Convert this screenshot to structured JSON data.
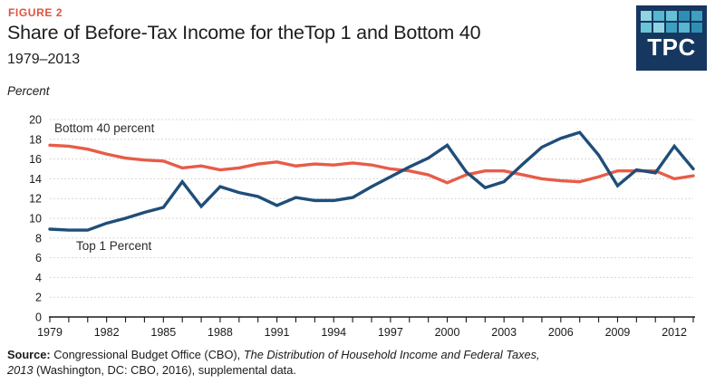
{
  "figure_label": "FIGURE 2",
  "title": "Share of Before-Tax Income for theTop 1 and Bottom 40",
  "subtitle": "1979–2013",
  "axis_unit_label": "Percent",
  "logo": {
    "text": "TPC",
    "background": "#16375f",
    "square_colors": [
      "#8fd4e0",
      "#57b6d0",
      "#66c0d6",
      "#2e8fb5",
      "#3da0c1",
      "#6cc3d6",
      "#8fd4e0",
      "#3da0c1",
      "#57b6d0",
      "#2e8fb5"
    ]
  },
  "chart_data": {
    "type": "line",
    "x": [
      1979,
      1980,
      1981,
      1982,
      1983,
      1984,
      1985,
      1986,
      1987,
      1988,
      1989,
      1990,
      1991,
      1992,
      1993,
      1994,
      1995,
      1996,
      1997,
      1998,
      1999,
      2000,
      2001,
      2002,
      2003,
      2004,
      2005,
      2006,
      2007,
      2008,
      2009,
      2010,
      2011,
      2012,
      2013
    ],
    "series": [
      {
        "name": "Bottom 40 percent",
        "color": "#e85c48",
        "values": [
          17.4,
          17.3,
          17.0,
          16.5,
          16.1,
          15.9,
          15.8,
          15.1,
          15.3,
          14.9,
          15.1,
          15.5,
          15.7,
          15.3,
          15.5,
          15.4,
          15.6,
          15.4,
          15.0,
          14.8,
          14.4,
          13.6,
          14.4,
          14.8,
          14.8,
          14.4,
          14.0,
          13.8,
          13.7,
          14.2,
          14.8,
          14.8,
          14.8,
          14.0,
          14.3
        ]
      },
      {
        "name": "Top 1 Percent",
        "color": "#1f4e79",
        "values": [
          8.9,
          8.8,
          8.8,
          9.5,
          10.0,
          10.6,
          11.1,
          13.7,
          11.2,
          13.2,
          12.6,
          12.2,
          11.3,
          12.1,
          11.8,
          11.8,
          12.1,
          13.2,
          14.2,
          15.2,
          16.1,
          17.4,
          14.7,
          13.1,
          13.7,
          15.5,
          17.2,
          18.1,
          18.7,
          16.4,
          13.3,
          14.9,
          14.6,
          17.3,
          15.0
        ]
      }
    ],
    "title": "Share of Before-Tax Income for theTop 1 and Bottom 40",
    "xlabel": "",
    "ylabel": "Percent",
    "ylim": [
      0,
      20
    ],
    "ytick_step": 2,
    "xtick_label_step": 3,
    "xtick_labels": [
      "1979",
      "1982",
      "1985",
      "1988",
      "1991",
      "1994",
      "1997",
      "2000",
      "2003",
      "2006",
      "2009",
      "2012"
    ],
    "grid": "horizontal-dotted",
    "legend_position": "inline-annotations"
  },
  "source": {
    "label": "Source:",
    "line1_normal": " Congressional Budget Office (CBO), ",
    "line1_italic": "The Distribution of Household Income and Federal Taxes,",
    "line2_italic": "2013",
    "line2_normal": " (Washington, DC: CBO, 2016), supplemental data."
  }
}
